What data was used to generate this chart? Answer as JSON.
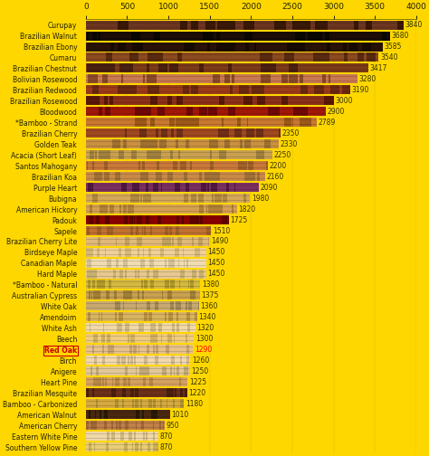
{
  "background_color": "#FFD700",
  "xlim": [
    0,
    4000
  ],
  "xticks": [
    0,
    500,
    1000,
    1500,
    2000,
    2500,
    3000,
    3500,
    4000
  ],
  "categories": [
    "Curupay",
    "Brazilian Walnut",
    "Brazilian Ebony",
    "Cumaru",
    "Brazilian Chestnut",
    "Bolivian Rosewood",
    "Brazilian Redwood",
    "Brazilian Rosewood",
    "Bloodwood",
    "*Bamboo - Strand",
    "Brazilian Cherry",
    "Golden Teak",
    "Acacia (Short Leaf)",
    "Santos Mahogany",
    "Brazilian Koa",
    "Purple Heart",
    "Bubigna",
    "American Hickory",
    "Padouk",
    "Sapele",
    "Brazilian Cherry Lite",
    "Birdseye Maple",
    "Canadian Maple",
    "Hard Maple",
    "*Bamboo - Natural",
    "Australian Cypress",
    "White Oak",
    "Amendoim",
    "White Ash",
    "Beech",
    "Red Oak",
    "Birch",
    "Anigere",
    "Heart Pine",
    "Brazilian Mesquite",
    "Bamboo - Carbonized",
    "American Walnut",
    "American Cherry",
    "Eastern White Pine",
    "Southern Yellow Pine"
  ],
  "values": [
    3840,
    3680,
    3585,
    3540,
    3417,
    3280,
    3190,
    3000,
    2900,
    2789,
    2350,
    2330,
    2250,
    2200,
    2160,
    2090,
    1980,
    1820,
    1725,
    1510,
    1490,
    1450,
    1450,
    1450,
    1380,
    1375,
    1360,
    1340,
    1320,
    1300,
    1290,
    1260,
    1250,
    1225,
    1220,
    1180,
    1010,
    950,
    870,
    870
  ],
  "bar_colors_primary": [
    "#6B3520",
    "#1C0E07",
    "#2A1208",
    "#8B4A20",
    "#7B3A18",
    "#C87850",
    "#9B3A18",
    "#8B3018",
    "#A01808",
    "#C87830",
    "#A04820",
    "#C89040",
    "#C8A050",
    "#C87838",
    "#C88A48",
    "#7B3060",
    "#D4A858",
    "#D4A050",
    "#8B0000",
    "#C07030",
    "#E0B878",
    "#F0D098",
    "#F0DCB0",
    "#E8C890",
    "#D4B840",
    "#C8A050",
    "#C8AA70",
    "#D8B460",
    "#F0D8A8",
    "#F0CC80",
    "#E8C08A",
    "#F0D8B0",
    "#E0C898",
    "#D4A060",
    "#6B3018",
    "#D4A840",
    "#4A2810",
    "#C08048",
    "#F0D8A8",
    "#E8CC78"
  ],
  "bar_colors_stripe": [
    "#3A1808",
    "#0A0603",
    "#180A04",
    "#5A2A10",
    "#4A2010",
    "#8B4A28",
    "#6B2810",
    "#5A1808",
    "#700808",
    "#9B5818",
    "#703018",
    "#A07030",
    "#A08040",
    "#A06028",
    "#A07038",
    "#501840",
    "#B08840",
    "#B08038",
    "#600000",
    "#A06028",
    "#C0A060",
    "#D4B878",
    "#D4C098",
    "#C8B070",
    "#B09828",
    "#A08038",
    "#A08858",
    "#B89040",
    "#D0B880",
    "#D0B060",
    "#C8A070",
    "#D0B890",
    "#C0A878",
    "#B88848",
    "#4A2010",
    "#B09030",
    "#2A1808",
    "#A06838",
    "#D0B880",
    "#C8B058"
  ],
  "red_oak_index": 30,
  "value_fontsize": 5.5,
  "label_fontsize": 5.5,
  "bar_height": 0.78,
  "tick_fontsize": 6.5
}
